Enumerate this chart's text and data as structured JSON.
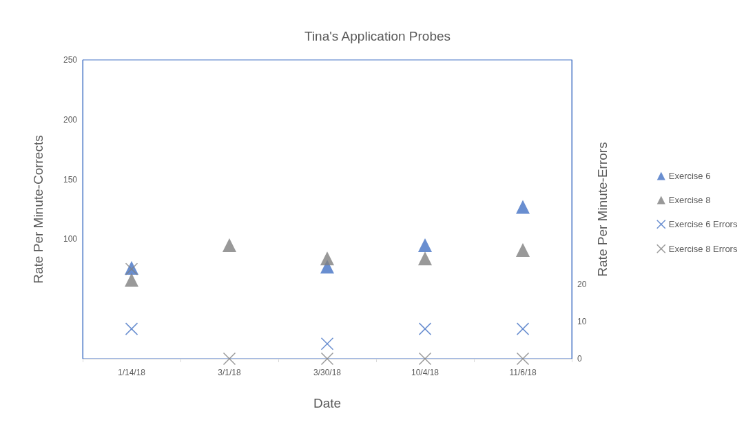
{
  "chart_data": {
    "type": "scatter",
    "title": "Tina's Application Probes",
    "xlabel": "Date",
    "ylabel": "Rate Per Minute-Corrects",
    "y2label": "Rate Per Minute-Errors",
    "categories": [
      "1/14/18",
      "3/1/18",
      "3/30/18",
      "10/4/18",
      "11/6/18"
    ],
    "ylim": [
      0,
      250
    ],
    "yticks": [
      100,
      150,
      200,
      250
    ],
    "y2lim": [
      0,
      80
    ],
    "y2ticks": [
      0,
      10,
      20
    ],
    "grid": false,
    "legend": "right",
    "series": [
      {
        "name": "Exercise 6",
        "color": "#4472c4",
        "marker": "triangle",
        "values": [
          76,
          null,
          77,
          95,
          127
        ]
      },
      {
        "name": "Exercise 8",
        "color": "#7f7f7f",
        "marker": "triangle",
        "values": [
          66,
          95,
          84,
          84,
          91
        ]
      },
      {
        "name": "Exercise 6 Errors",
        "color": "#4472c4",
        "marker": "cross",
        "axis": "y2",
        "values": [
          8,
          null,
          4,
          8,
          8
        ]
      },
      {
        "name": "Exercise 8 Errors",
        "color": "#7f7f7f",
        "marker": "cross",
        "axis": "y2",
        "values": [
          24,
          0,
          0,
          0,
          0
        ]
      }
    ]
  }
}
